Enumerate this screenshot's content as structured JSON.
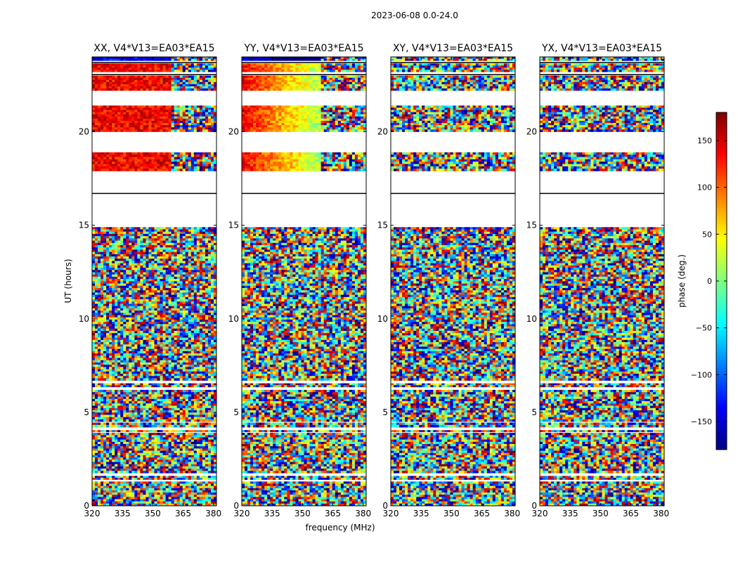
{
  "figure_title": "2023-06-08 0.0-24.0",
  "chart_data": {
    "type": "heatmap",
    "title": "2023-06-08 0.0-24.0",
    "xlabel": "frequency (MHz)",
    "ylabel": "UT (hours)",
    "xlim": [
      320,
      381.5
    ],
    "ylim": [
      0,
      24
    ],
    "x_ticks": [
      320,
      335,
      350,
      365,
      380
    ],
    "y_ticks": [
      0,
      5,
      10,
      15,
      20
    ],
    "colorbar": {
      "label": "phase (deg.)",
      "range": [
        -180,
        180
      ],
      "ticks": [
        150,
        100,
        50,
        0,
        -50,
        -100,
        -150
      ],
      "colormap": "jet"
    },
    "panels": [
      {
        "title": "XX, V4*V13=EA03*EA15",
        "coherent_phase": true
      },
      {
        "title": "YY, V4*V13=EA03*EA15",
        "coherent_phase": true
      },
      {
        "title": "XY, V4*V13=EA03*EA15",
        "coherent_phase": false
      },
      {
        "title": "YX, V4*V13=EA03*EA15",
        "coherent_phase": false
      }
    ],
    "data_time_ranges_hours": [
      [
        0.0,
        1.3
      ],
      [
        1.4,
        1.6
      ],
      [
        1.75,
        3.9
      ],
      [
        3.95,
        4.05
      ],
      [
        4.2,
        4.45
      ],
      [
        4.5,
        6.2
      ],
      [
        6.35,
        6.55
      ],
      [
        6.7,
        14.9
      ],
      [
        17.9,
        18.9
      ],
      [
        20.0,
        21.4
      ],
      [
        22.2,
        23.0
      ],
      [
        23.2,
        23.65
      ],
      [
        23.8,
        24.0
      ]
    ],
    "note": "Phase vs frequency/time dynamic spectra; values are noise-like except coherent phase ramps in parallel-hand (XX, YY) panels."
  }
}
